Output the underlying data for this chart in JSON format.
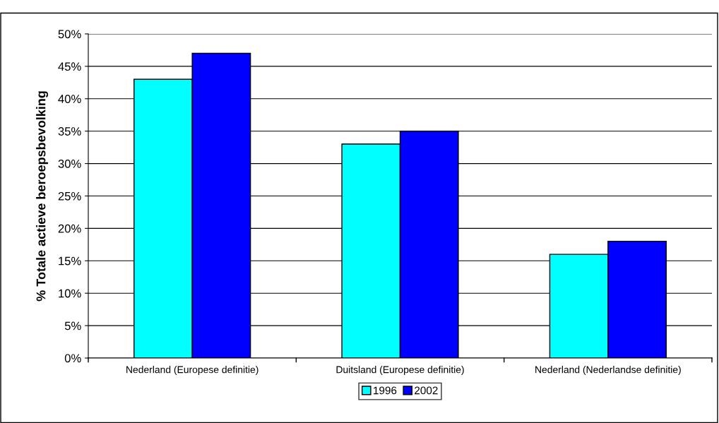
{
  "chart_data": {
    "type": "bar",
    "ylabel": "% Totale actieve beroepsbevolking",
    "categories": [
      "Nederland (Europese definitie)",
      "Duitsland (Europese definitie)",
      "Nederland (Nederlandse definitie)"
    ],
    "series": [
      {
        "name": "1996",
        "color": "#00ffff",
        "values": [
          43,
          33,
          16
        ]
      },
      {
        "name": "2002",
        "color": "#0000ff",
        "values": [
          47,
          35,
          18
        ]
      }
    ],
    "ylim": [
      0,
      50
    ],
    "yticks": [
      {
        "value": 0,
        "label": "0%"
      },
      {
        "value": 5,
        "label": "5%"
      },
      {
        "value": 10,
        "label": "10%"
      },
      {
        "value": 15,
        "label": "15%"
      },
      {
        "value": 20,
        "label": "20%"
      },
      {
        "value": 25,
        "label": "25%"
      },
      {
        "value": 30,
        "label": "30%"
      },
      {
        "value": 35,
        "label": "35%"
      },
      {
        "value": 40,
        "label": "40%"
      },
      {
        "value": 45,
        "label": "45%"
      },
      {
        "value": 50,
        "label": "50%"
      }
    ],
    "grid": "y",
    "legend": "bottom"
  }
}
